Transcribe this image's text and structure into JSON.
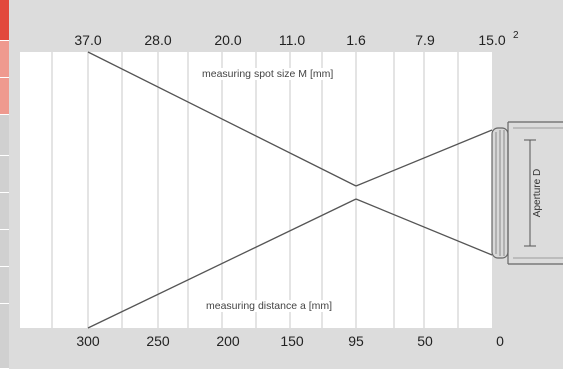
{
  "spot_sizes": [
    "37.0",
    "28.0",
    "20.0",
    "11.0",
    "1.6",
    "7.9",
    "15.0"
  ],
  "spot_size_note": "2",
  "distances": [
    "300",
    "250",
    "200",
    "150",
    "95",
    "50",
    "0"
  ],
  "spot_size_caption": "measuring spot size M [mm]",
  "distance_caption": "measuring distance a [mm]",
  "aperture_label": "Aperture D",
  "colors": {
    "background": "#dcdcdc",
    "diagram": "#ffffff",
    "beam_line": "#555555",
    "grid": "#c8c8c8",
    "side_red": "#e2483c",
    "side_pink": "#ef9a8f"
  }
}
